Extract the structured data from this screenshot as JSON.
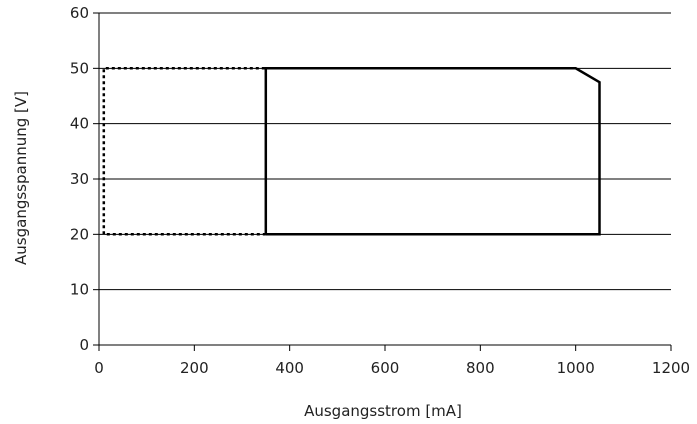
{
  "chart_data": {
    "type": "line",
    "title": "",
    "xlabel": "Ausgangsstrom [mA]",
    "ylabel": "Ausgangsspannung [V]",
    "xlim": [
      0,
      1200
    ],
    "ylim": [
      0,
      60
    ],
    "x_ticks": [
      0,
      200,
      400,
      600,
      800,
      1000,
      1200
    ],
    "y_ticks": [
      0,
      10,
      20,
      30,
      40,
      50,
      60
    ],
    "x_tick_labels": [
      "0",
      "200",
      "400",
      "600",
      "800",
      "1000",
      "1200"
    ],
    "y_tick_labels": [
      "0",
      "10",
      "20",
      "30",
      "40",
      "50",
      "60"
    ],
    "grid": "horizontal",
    "legend": "none",
    "series": [
      {
        "style": "dashed",
        "color": "#000000",
        "points": [
          [
            350,
            20
          ],
          [
            10,
            20
          ],
          [
            10,
            50
          ],
          [
            350,
            50
          ]
        ]
      },
      {
        "style": "solid",
        "color": "#000000",
        "points": [
          [
            350,
            20
          ],
          [
            350,
            50
          ],
          [
            1000,
            50
          ],
          [
            1050,
            47.5
          ],
          [
            1050,
            20
          ],
          [
            350,
            20
          ]
        ]
      }
    ]
  }
}
